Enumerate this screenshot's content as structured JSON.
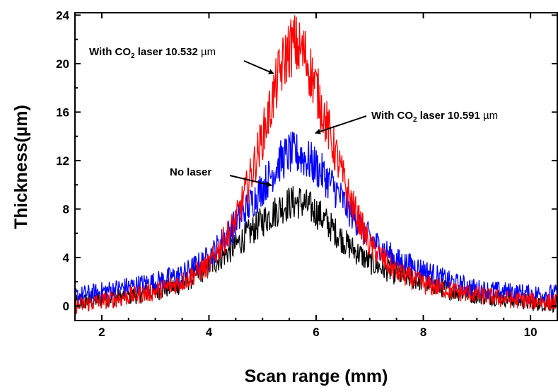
{
  "chart_data": {
    "type": "line",
    "title": "",
    "xlabel": "Scan range (mm)",
    "ylabel": "Thickness(µm)",
    "xlim": [
      1.5,
      10.5
    ],
    "ylim": [
      -1.2,
      24.2
    ],
    "x_ticks": [
      2,
      4,
      6,
      8,
      10
    ],
    "y_ticks": [
      0,
      4,
      8,
      12,
      16,
      20,
      24
    ],
    "grid": false,
    "series": [
      {
        "name": "No laser",
        "color": "#000000",
        "x": [
          1.5,
          2.0,
          2.5,
          3.0,
          3.5,
          4.0,
          4.5,
          5.0,
          5.3,
          5.5,
          5.7,
          6.0,
          6.3,
          6.6,
          7.0,
          7.5,
          8.0,
          8.5,
          9.0,
          9.5,
          10.0,
          10.4
        ],
        "y": [
          0.2,
          0.6,
          0.8,
          1.2,
          1.8,
          3.2,
          5.0,
          7.0,
          8.0,
          8.5,
          8.6,
          7.8,
          6.4,
          5.0,
          3.6,
          2.6,
          2.0,
          1.3,
          0.9,
          0.7,
          0.3,
          0.2
        ]
      },
      {
        "name": "With CO2 laser 10.591 µm",
        "color": "#0000ff",
        "x": [
          1.5,
          2.0,
          2.5,
          3.0,
          3.5,
          4.0,
          4.5,
          5.0,
          5.3,
          5.5,
          5.7,
          6.0,
          6.3,
          6.6,
          7.0,
          7.5,
          8.0,
          8.5,
          9.0,
          9.5,
          10.0,
          10.4
        ],
        "y": [
          0.8,
          1.2,
          1.6,
          2.0,
          2.6,
          4.0,
          6.8,
          9.8,
          11.8,
          12.6,
          12.5,
          11.5,
          10.0,
          8.0,
          5.6,
          3.8,
          3.0,
          2.0,
          1.4,
          1.2,
          1.0,
          1.0
        ]
      },
      {
        "name": "With CO2 laser 10.532 µm",
        "color": "#ff0000",
        "x": [
          1.5,
          2.0,
          2.5,
          3.0,
          3.5,
          4.0,
          4.5,
          4.8,
          5.1,
          5.3,
          5.5,
          5.6,
          5.8,
          6.0,
          6.3,
          6.6,
          7.0,
          7.5,
          8.0,
          8.5,
          9.0,
          9.5,
          10.0,
          10.4
        ],
        "y": [
          0.0,
          0.4,
          0.8,
          1.2,
          2.0,
          3.4,
          7.0,
          11.0,
          15.5,
          19.0,
          21.3,
          21.6,
          20.6,
          18.0,
          13.5,
          9.2,
          5.0,
          2.8,
          1.8,
          1.3,
          0.9,
          0.6,
          0.4,
          0.3
        ]
      }
    ],
    "annotations": [
      {
        "main": "With CO",
        "sub": "2",
        "rest": " laser 10.532 ",
        "unit": "µm"
      },
      {
        "main": "With CO",
        "sub": "2",
        "rest": " laser 10.591 ",
        "unit": "µm"
      },
      {
        "main": "No laser"
      }
    ]
  }
}
